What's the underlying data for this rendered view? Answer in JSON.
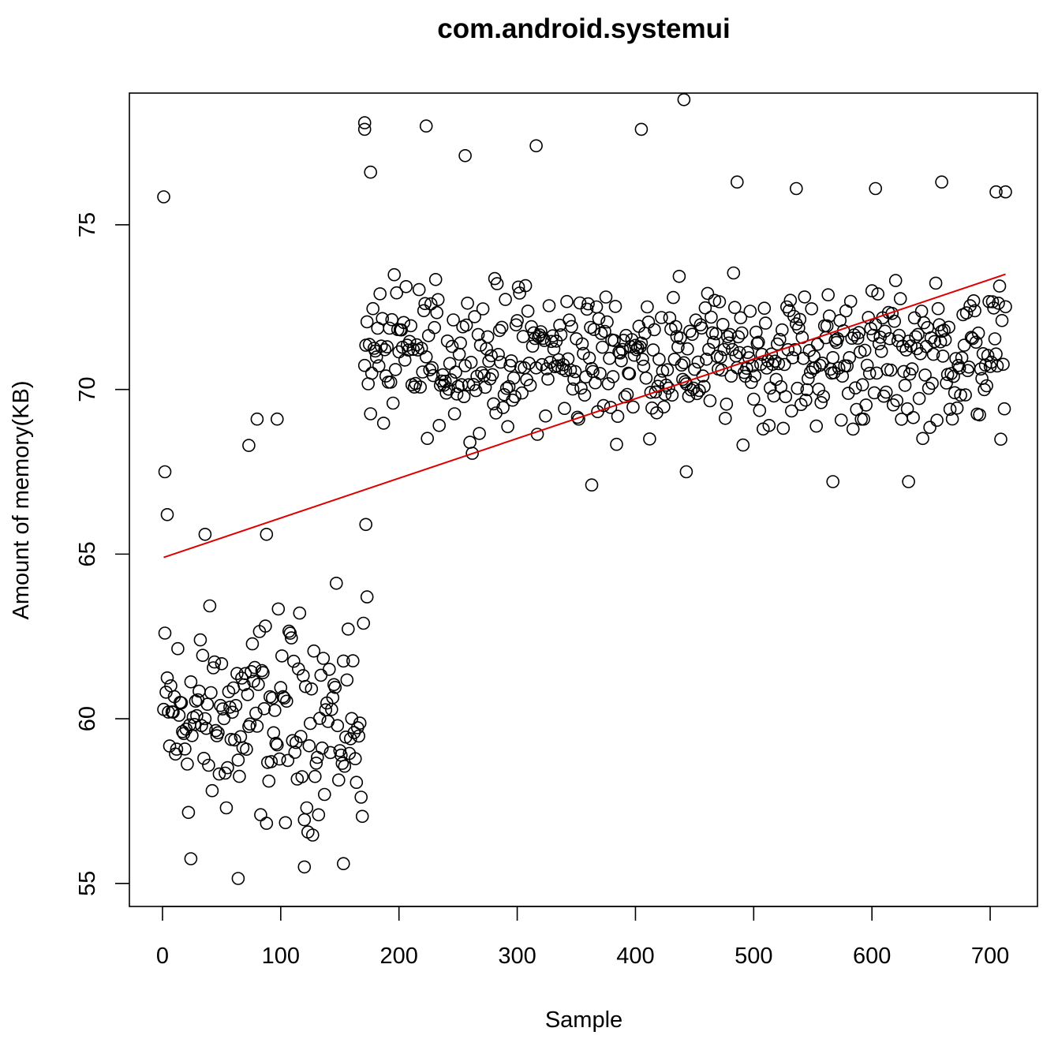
{
  "chart_data": {
    "type": "scatter",
    "title": "com.android.systemui",
    "xlabel": "Sample",
    "ylabel": "Amount of memory(KB)",
    "xlim": [
      -28,
      740
    ],
    "ylim": [
      54.3,
      79.0
    ],
    "xticks": [
      0,
      100,
      200,
      300,
      400,
      500,
      600,
      700
    ],
    "yticks": [
      55,
      60,
      65,
      70,
      75
    ],
    "point_color": "#000000",
    "trend_line_color": "#dd0000",
    "trend_line": {
      "x": [
        1,
        713
      ],
      "y": [
        64.9,
        73.5
      ]
    },
    "series": [
      {
        "segments": [
          {
            "x_start": 1,
            "x_end": 170,
            "center": 60.0,
            "spread": 4.6,
            "count": 170
          },
          {
            "x_start": 171,
            "x_end": 713,
            "center": 71.0,
            "spread": 3.1,
            "count": 543
          }
        ],
        "highlights": [
          {
            "x": 1,
            "y": 75.85
          },
          {
            "x": 2,
            "y": 67.5
          },
          {
            "x": 4,
            "y": 66.2
          },
          {
            "x": 171,
            "y": 78.1
          },
          {
            "x": 171,
            "y": 77.9
          },
          {
            "x": 176,
            "y": 76.6
          },
          {
            "x": 223,
            "y": 78.0
          },
          {
            "x": 256,
            "y": 77.1
          },
          {
            "x": 316,
            "y": 77.4
          },
          {
            "x": 405,
            "y": 77.9
          },
          {
            "x": 441,
            "y": 78.8
          },
          {
            "x": 486,
            "y": 76.3
          },
          {
            "x": 536,
            "y": 76.1
          },
          {
            "x": 603,
            "y": 76.1
          },
          {
            "x": 659,
            "y": 76.3
          },
          {
            "x": 705,
            "y": 76.0
          },
          {
            "x": 713,
            "y": 76.0
          },
          {
            "x": 64,
            "y": 55.15
          },
          {
            "x": 24,
            "y": 55.75
          },
          {
            "x": 120,
            "y": 55.5
          },
          {
            "x": 153,
            "y": 55.6
          },
          {
            "x": 80,
            "y": 69.1
          },
          {
            "x": 97,
            "y": 69.1
          },
          {
            "x": 73,
            "y": 68.3
          },
          {
            "x": 172,
            "y": 65.9
          },
          {
            "x": 173,
            "y": 63.7
          },
          {
            "x": 36,
            "y": 65.6
          },
          {
            "x": 88,
            "y": 65.6
          },
          {
            "x": 363,
            "y": 67.1
          },
          {
            "x": 443,
            "y": 67.5
          },
          {
            "x": 631,
            "y": 67.2
          },
          {
            "x": 567,
            "y": 67.2
          }
        ]
      }
    ]
  }
}
